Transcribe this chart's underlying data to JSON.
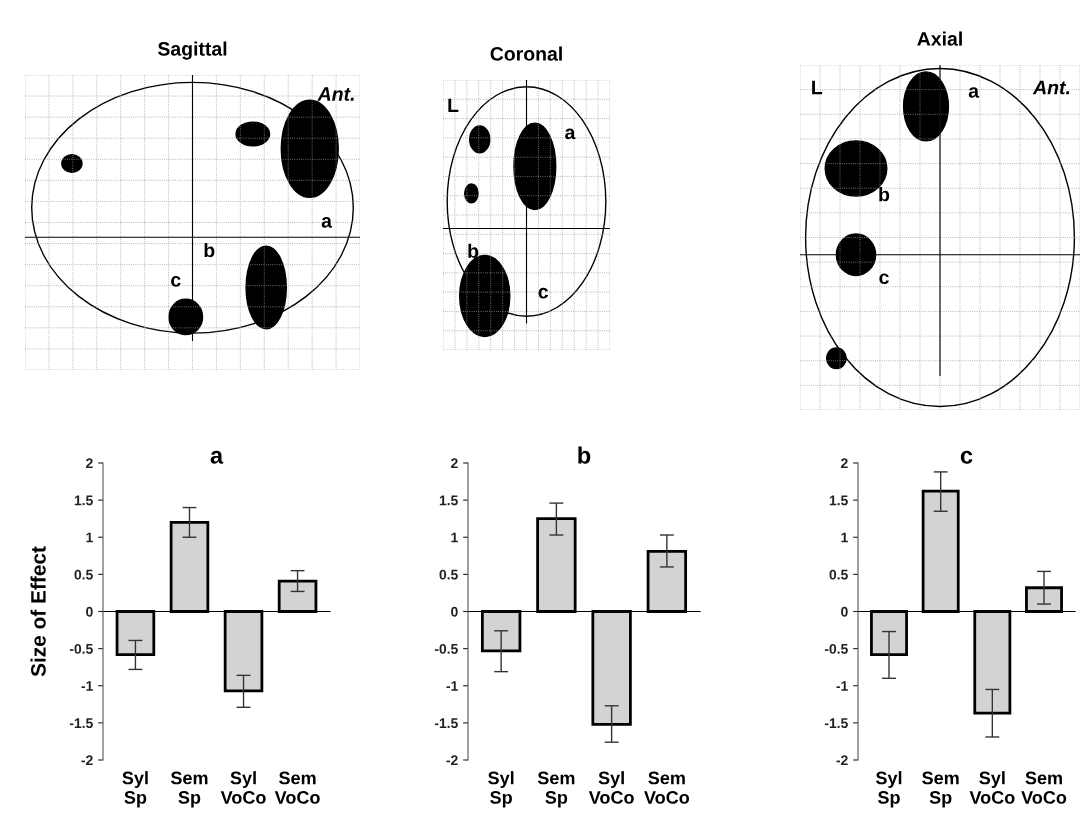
{
  "chart_data": [
    {
      "type": "other",
      "title": "Sagittal",
      "annotations": [
        "Ant.",
        "a",
        "b",
        "c"
      ]
    },
    {
      "type": "other",
      "title": "Coronal",
      "annotations": [
        "L",
        "a",
        "b",
        "c"
      ]
    },
    {
      "type": "other",
      "title": "Axial",
      "annotations": [
        "L",
        "Ant.",
        "a",
        "b",
        "c"
      ]
    },
    {
      "type": "bar",
      "title": "a",
      "ylabel": "Size of Effect",
      "categories": [
        "Syl\nSp",
        "Sem\nSp",
        "Syl\nVoCo",
        "Sem\nVoCo"
      ],
      "color": "#d3d3d3",
      "values": [
        -0.58,
        1.2,
        -1.07,
        0.41
      ],
      "errors": [
        [
          -0.78,
          -0.39
        ],
        [
          1.0,
          1.4
        ],
        [
          -1.29,
          -0.86
        ],
        [
          0.27,
          0.55
        ]
      ],
      "ylim": [
        -2,
        2
      ],
      "yticks": [
        {
          "value": -2,
          "label": "-2"
        },
        {
          "value": -1.5,
          "label": "-1.5"
        },
        {
          "value": -1,
          "label": "-1"
        },
        {
          "value": -0.5,
          "label": "-0.5"
        },
        0,
        0.5,
        1,
        1.5,
        2
      ],
      "legend": false
    },
    {
      "type": "bar",
      "title": "b",
      "categories": [
        "Syl\nSp",
        "Sem\nSp",
        "Syl\nVoCo",
        "Sem\nVoCo"
      ],
      "color": "#d3d3d3",
      "values": [
        -0.53,
        1.25,
        -1.52,
        0.81
      ],
      "errors": [
        [
          -0.81,
          -0.26
        ],
        [
          1.03,
          1.46
        ],
        [
          -1.76,
          -1.27
        ],
        [
          0.6,
          1.03
        ]
      ],
      "ylim": [
        -2,
        2
      ],
      "yticks": [
        {
          "value": -2,
          "label": "-2"
        },
        {
          "value": -1.5,
          "label": "-1.5"
        },
        {
          "value": -1,
          "label": "-1"
        },
        {
          "value": -0.5,
          "label": "-0.5"
        },
        0,
        0.5,
        1,
        1.5,
        2
      ],
      "legend": false
    },
    {
      "type": "bar",
      "title": "c",
      "categories": [
        "Syl\nSp",
        "Sem\nSp",
        "Syl\nVoCo",
        "Sem\nVoCo"
      ],
      "color": "#d3d3d3",
      "values": [
        -0.58,
        1.62,
        -1.37,
        0.32
      ],
      "errors": [
        [
          -0.9,
          -0.27
        ],
        [
          1.35,
          1.88
        ],
        [
          -1.69,
          -1.05
        ],
        [
          0.1,
          0.54
        ]
      ],
      "ylim": [
        -2,
        2
      ],
      "yticks": [
        {
          "value": -2,
          "label": "-2"
        },
        {
          "value": -1.5,
          "label": "-1.5"
        },
        {
          "value": -1,
          "label": "-1"
        },
        {
          "value": -0.5,
          "label": "-0.5"
        },
        0,
        0.5,
        1,
        1.5,
        2
      ],
      "legend": false
    }
  ]
}
